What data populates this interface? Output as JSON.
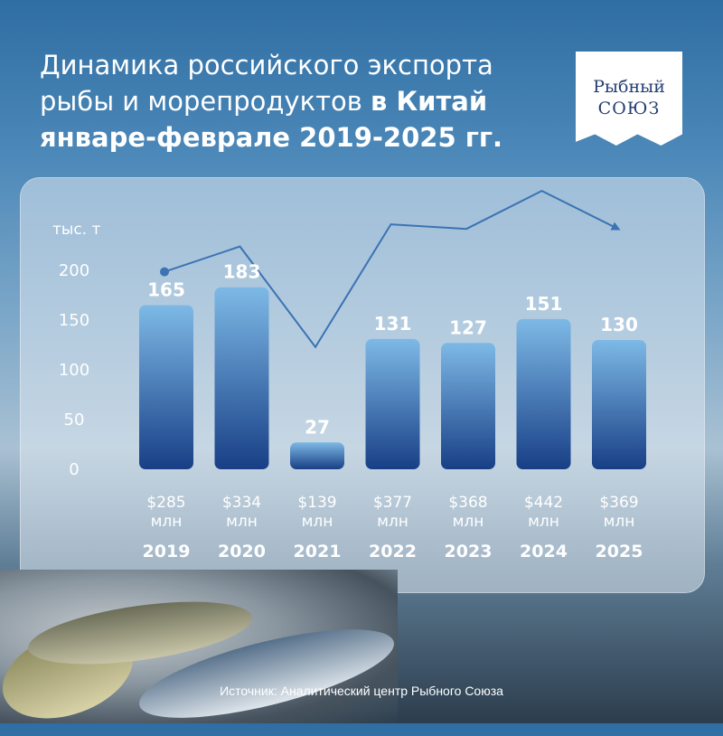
{
  "title": {
    "line1": "Динамика российского экспорта",
    "line2_normal": "рыбы и морепродуктов ",
    "line2_bold": "в Китай",
    "line3_bold": "январе-феврале 2019-2025 гг."
  },
  "logo": {
    "line1": "Рыбный",
    "line2": "СОЮЗ"
  },
  "source": "Источник: Аналитический центр Рыбного Союза",
  "colors": {
    "bar_top": "#7db9e6",
    "bar_bottom": "#183f86",
    "line": "#3b73b3",
    "axis_text": "#ffffff"
  },
  "chart_data": {
    "type": "bar",
    "ylabel": "тыс. т",
    "ylim": [
      0,
      200
    ],
    "yticks": [
      0,
      50,
      100,
      150,
      200
    ],
    "categories": [
      "2019",
      "2020",
      "2021",
      "2022",
      "2023",
      "2024",
      "2025"
    ],
    "values": [
      165,
      183,
      27,
      131,
      127,
      151,
      130
    ],
    "value_labels": [
      "$285 млн",
      "$334 млн",
      "$139 млн",
      "$377 млн",
      "$368 млн",
      "$442 млн",
      "$369 млн"
    ],
    "value_line": {
      "name": "",
      "values_musd": [
        285,
        334,
        139,
        377,
        368,
        442,
        369
      ],
      "unit": "млн $"
    },
    "grid": false,
    "legend": "none"
  }
}
